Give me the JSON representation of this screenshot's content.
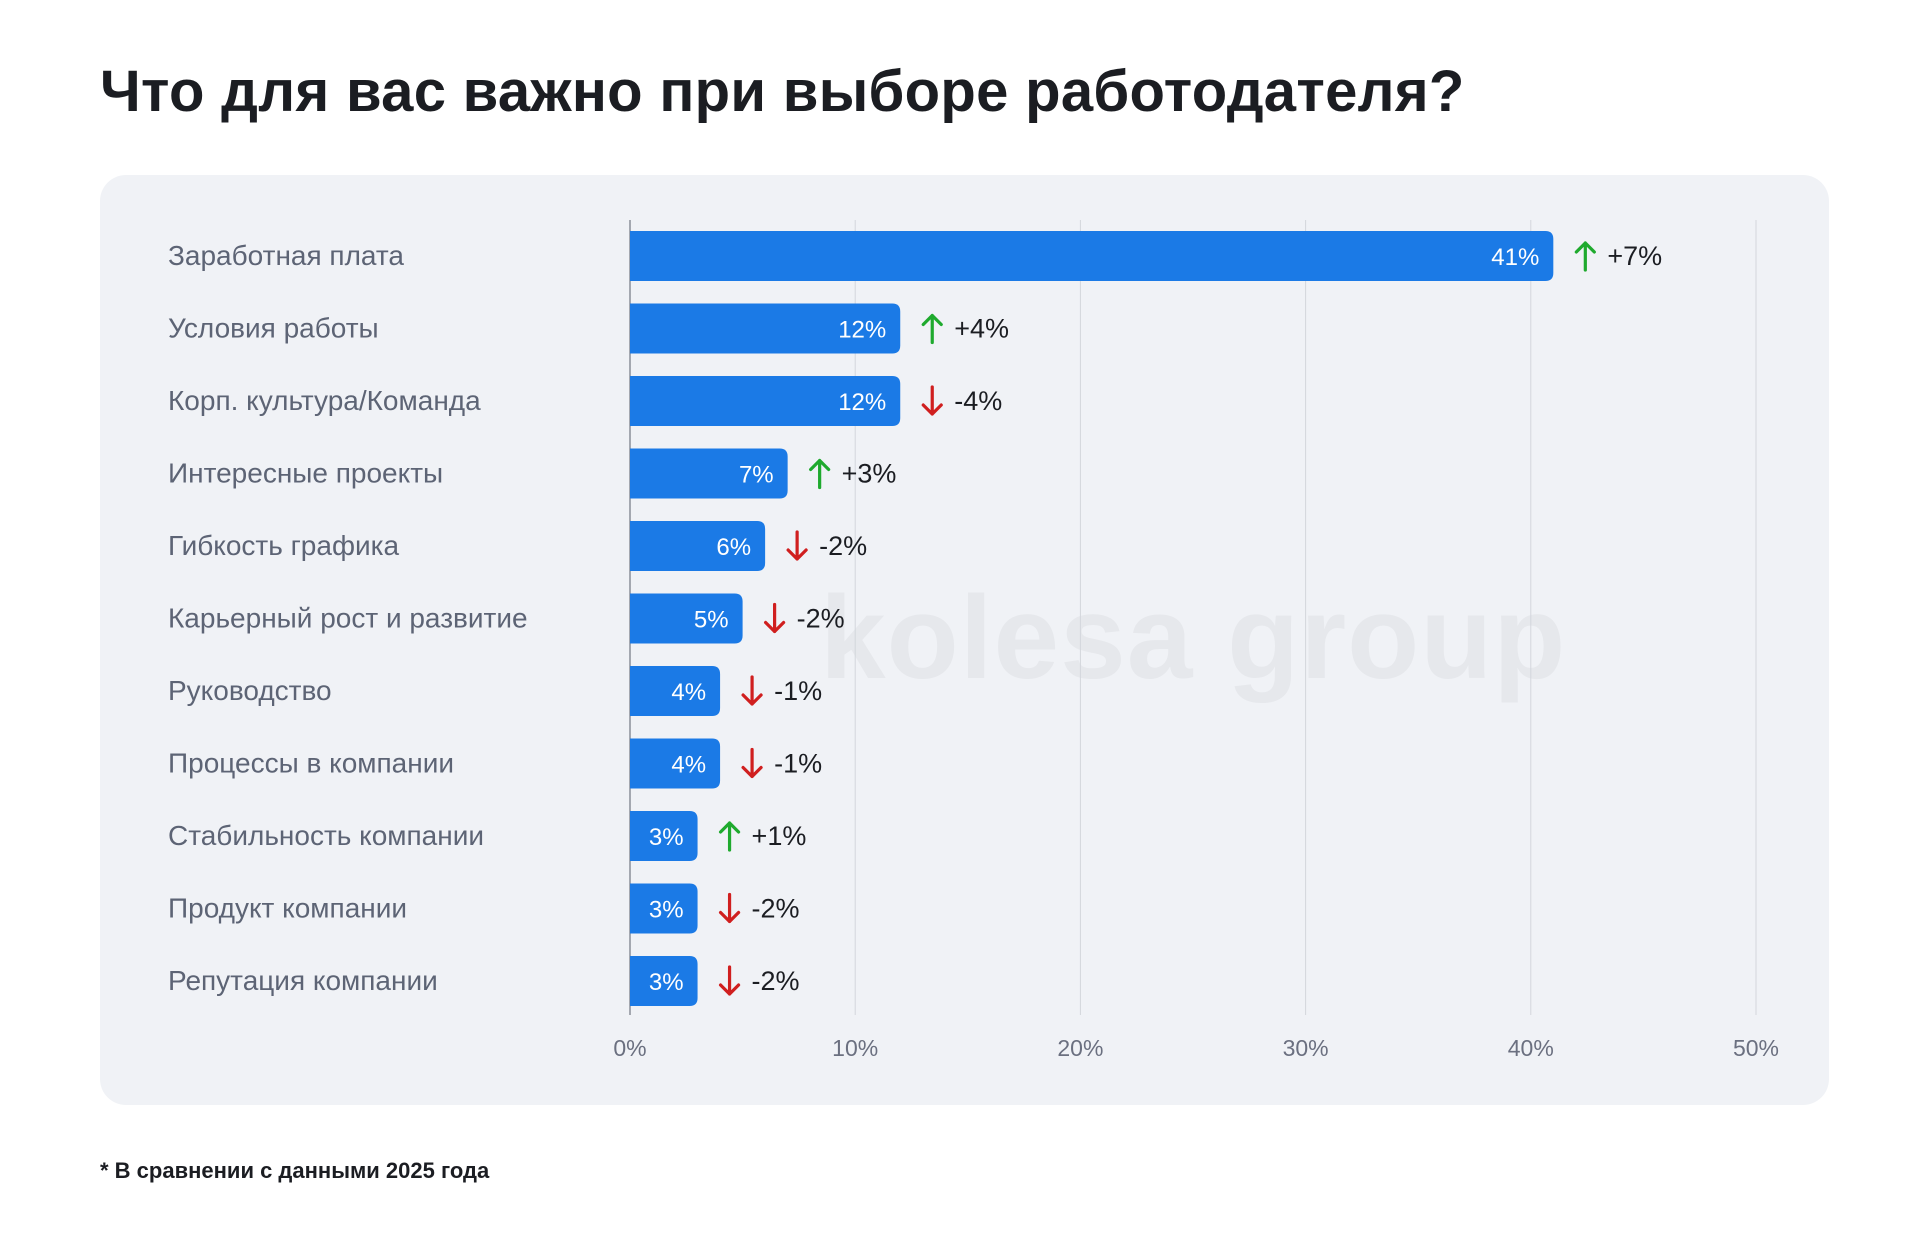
{
  "title": "Что для вас важно при выборе работодателя?",
  "watermark": "kolesa group",
  "footnote": "* В сравнении с данными 2025 года",
  "colors": {
    "bar": "#1b7ae6",
    "up": "#1faa2e",
    "down": "#d01f1f",
    "label": "#5d6475",
    "axis_text": "#6b7080",
    "grid": "#d3d6dc"
  },
  "chart_data": {
    "type": "bar",
    "orientation": "horizontal",
    "title": "Что для вас важно при выборе работодателя?",
    "categories": [
      "Заработная плата",
      "Условия работы",
      "Корп. культура/Команда",
      "Интересные проекты",
      "Гибкость графика",
      "Карьерный рост и развитие",
      "Руководство",
      "Процессы в компании",
      "Стабильность компании",
      "Продукт компании",
      "Репутация компании"
    ],
    "values": [
      41,
      12,
      12,
      7,
      6,
      5,
      4,
      4,
      3,
      3,
      3
    ],
    "value_labels": [
      "41%",
      "12%",
      "12%",
      "7%",
      "6%",
      "5%",
      "4%",
      "4%",
      "3%",
      "3%",
      "3%"
    ],
    "changes": [
      {
        "direction": "up",
        "label": "+7%"
      },
      {
        "direction": "up",
        "label": "+4%"
      },
      {
        "direction": "down",
        "label": "-4%"
      },
      {
        "direction": "up",
        "label": "+3%"
      },
      {
        "direction": "down",
        "label": "-2%"
      },
      {
        "direction": "down",
        "label": "-2%"
      },
      {
        "direction": "down",
        "label": "-1%"
      },
      {
        "direction": "down",
        "label": "-1%"
      },
      {
        "direction": "up",
        "label": "+1%"
      },
      {
        "direction": "down",
        "label": "-2%"
      },
      {
        "direction": "down",
        "label": "-2%"
      }
    ],
    "xlim": [
      0,
      50
    ],
    "xticks": [
      0,
      10,
      20,
      30,
      40,
      50
    ],
    "xtick_labels": [
      "0%",
      "10%",
      "20%",
      "30%",
      "40%",
      "50%"
    ],
    "grid": true,
    "xlabel": "",
    "ylabel": ""
  }
}
